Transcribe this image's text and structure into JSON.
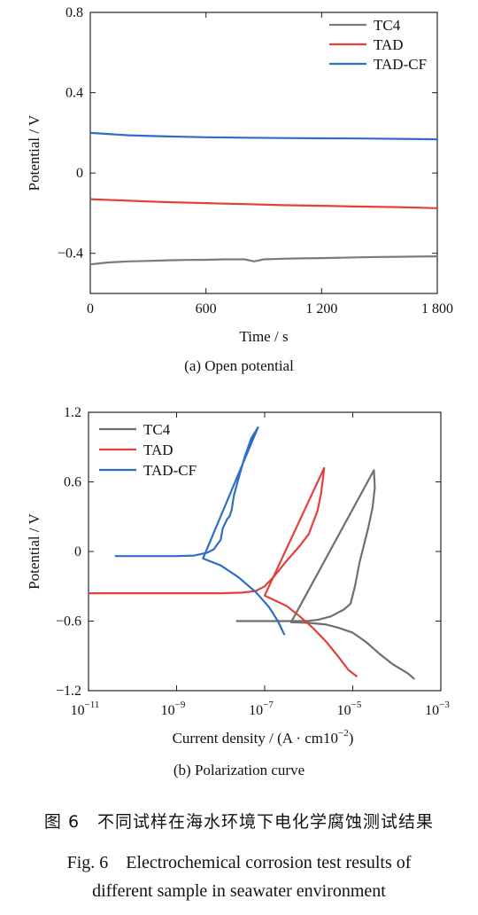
{
  "chart_data": [
    {
      "type": "line",
      "caption": "(a) Open potential",
      "xlabel": "Time / s",
      "ylabel": "Potential / V",
      "xlim": [
        0,
        1800
      ],
      "ylim": [
        -0.6,
        0.8
      ],
      "xticks": [
        0,
        600,
        1200,
        1800
      ],
      "xtick_labels": [
        "0",
        "600",
        "1 200",
        "1 800"
      ],
      "yticks": [
        -0.4,
        0,
        0.4,
        0.8
      ],
      "ytick_labels": [
        "−0.4",
        "0",
        "0.4",
        "0.8"
      ],
      "legend_position": "top-right",
      "series": [
        {
          "name": "TC4",
          "color": "#7a7a7a",
          "x": [
            0,
            50,
            100,
            200,
            300,
            400,
            500,
            600,
            700,
            800,
            850,
            900,
            1000,
            1100,
            1200,
            1300,
            1400,
            1500,
            1600,
            1700,
            1800
          ],
          "y": [
            -0.455,
            -0.45,
            -0.445,
            -0.44,
            -0.438,
            -0.435,
            -0.433,
            -0.432,
            -0.43,
            -0.43,
            -0.44,
            -0.43,
            -0.427,
            -0.425,
            -0.424,
            -0.422,
            -0.42,
            -0.418,
            -0.417,
            -0.416,
            -0.415
          ]
        },
        {
          "name": "TAD",
          "color": "#e0413a",
          "x": [
            0,
            200,
            400,
            600,
            800,
            1000,
            1200,
            1400,
            1600,
            1800
          ],
          "y": [
            -0.13,
            -0.138,
            -0.145,
            -0.15,
            -0.155,
            -0.16,
            -0.163,
            -0.167,
            -0.17,
            -0.175
          ]
        },
        {
          "name": "TAD-CF",
          "color": "#2e6ec4",
          "x": [
            0,
            200,
            400,
            600,
            800,
            1000,
            1200,
            1400,
            1600,
            1800
          ],
          "y": [
            0.2,
            0.188,
            0.182,
            0.178,
            0.176,
            0.174,
            0.173,
            0.172,
            0.17,
            0.168
          ]
        }
      ]
    },
    {
      "type": "line",
      "caption": "(b) Polarization curve",
      "xlabel": "Current density / (A · cm10",
      "xlabel_sup": "−2",
      "xlabel_tail": ")",
      "ylabel": "Potential / V",
      "xscale": "log",
      "xlim_exp": [
        -11,
        -3
      ],
      "ylim": [
        -1.2,
        1.2
      ],
      "xticks_exp": [
        -11,
        -9,
        -7,
        -5,
        -3
      ],
      "xtick_base": "10",
      "xtick_exp_labels": [
        "−11",
        "−9",
        "−7",
        "−5",
        "−3"
      ],
      "yticks": [
        -1.2,
        -0.6,
        0,
        0.6,
        1.2
      ],
      "ytick_labels": [
        "−1.2",
        "−0.6",
        "0",
        "0.6",
        "1.2"
      ],
      "legend_position": "top-left",
      "series": [
        {
          "name": "TC4",
          "color": "#6f6f6f",
          "log_x": [
            -7.65,
            -7.4,
            -7.1,
            -6.8,
            -6.5,
            -6.2,
            -6.0,
            -5.8,
            -5.5,
            -5.2,
            -5.05,
            -4.95,
            -4.85,
            -4.75,
            -4.65,
            -4.55,
            -4.5,
            -4.52,
            -6.4,
            -6.0,
            -5.6,
            -5.3,
            -5.0,
            -4.7,
            -4.4,
            -4.1,
            -3.75,
            -3.6
          ],
          "y": [
            -0.6,
            -0.6,
            -0.6,
            -0.6,
            -0.6,
            -0.6,
            -0.598,
            -0.59,
            -0.56,
            -0.5,
            -0.45,
            -0.3,
            -0.1,
            0.05,
            0.2,
            0.38,
            0.55,
            0.7,
            -0.61,
            -0.615,
            -0.63,
            -0.66,
            -0.7,
            -0.78,
            -0.88,
            -0.97,
            -1.05,
            -1.1
          ]
        },
        {
          "name": "TAD",
          "color": "#e0413a",
          "log_x": [
            -11,
            -10,
            -9,
            -8,
            -7.5,
            -7.2,
            -7.0,
            -6.8,
            -6.5,
            -6.2,
            -6.0,
            -5.9,
            -5.8,
            -5.72,
            -5.68,
            -5.65,
            -7.0,
            -6.5,
            -6.2,
            -5.9,
            -5.6,
            -5.3,
            -5.1,
            -4.9
          ],
          "y": [
            -0.36,
            -0.36,
            -0.36,
            -0.36,
            -0.355,
            -0.34,
            -0.3,
            -0.22,
            -0.08,
            0.05,
            0.15,
            0.25,
            0.35,
            0.5,
            0.62,
            0.72,
            -0.38,
            -0.47,
            -0.56,
            -0.66,
            -0.78,
            -0.92,
            -1.02,
            -1.08
          ]
        },
        {
          "name": "TAD-CF",
          "color": "#2e6ec4",
          "log_x": [
            -10.4,
            -10.0,
            -9.5,
            -9.0,
            -8.6,
            -8.3,
            -8.15,
            -8.1,
            -8.0,
            -7.95,
            -7.85,
            -7.8,
            -7.75,
            -7.7,
            -7.6,
            -7.45,
            -7.3,
            -7.15,
            -8.4,
            -8.0,
            -7.6,
            -7.2,
            -6.9,
            -6.7,
            -6.55
          ],
          "y": [
            -0.04,
            -0.04,
            -0.04,
            -0.04,
            -0.035,
            -0.01,
            0.02,
            0.05,
            0.1,
            0.2,
            0.28,
            0.3,
            0.36,
            0.48,
            0.62,
            0.82,
            0.98,
            1.07,
            -0.06,
            -0.12,
            -0.22,
            -0.35,
            -0.48,
            -0.6,
            -0.72
          ]
        }
      ]
    }
  ],
  "captions": {
    "chinese": "图 6　不同试样在海水环境下电化学腐蚀测试结果",
    "english_line1": "Fig. 6　Electrochemical corrosion test results of",
    "english_line2": "different sample in seawater environment"
  }
}
